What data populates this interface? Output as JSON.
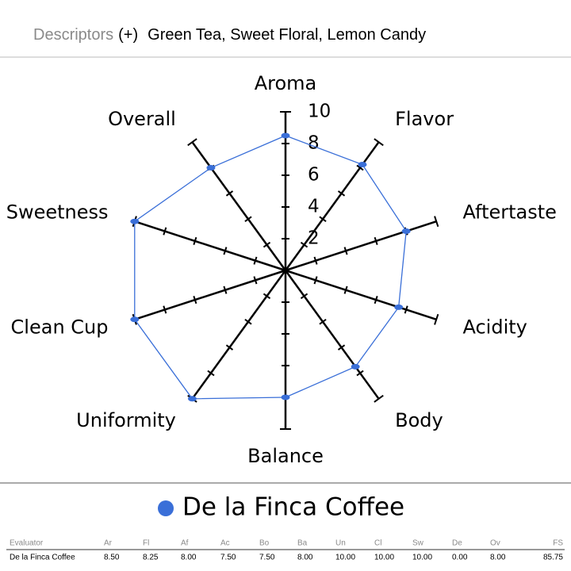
{
  "header": {
    "label": "Descriptors",
    "sign": "(+)",
    "text": "Green Tea, Sweet Floral, Lemon Candy"
  },
  "chart_data": {
    "type": "radar",
    "categories": [
      "Aroma",
      "Flavor",
      "Aftertaste",
      "Acidity",
      "Body",
      "Balance",
      "Uniformity",
      "Clean Cup",
      "Sweetness",
      "Overall"
    ],
    "series": [
      {
        "name": "De la Finca Coffee",
        "color": "#3a6fd8",
        "values": [
          8.5,
          8.25,
          8,
          7.5,
          7.5,
          8,
          10,
          10,
          10,
          8
        ]
      }
    ],
    "rlim": [
      0,
      10
    ],
    "rticks": [
      2,
      4,
      6,
      8,
      10
    ]
  },
  "table": {
    "columns": [
      "Evaluator",
      "Ar",
      "Fl",
      "Af",
      "Ac",
      "Bo",
      "Ba",
      "Un",
      "Cl",
      "Sw",
      "De",
      "Ov",
      "FS"
    ],
    "rows": [
      [
        "De la Finca Coffee",
        "8.50",
        "8.25",
        "8.00",
        "7.50",
        "7.50",
        "8.00",
        "10.00",
        "10.00",
        "10.00",
        "0.00",
        "8.00",
        "85.75"
      ]
    ]
  }
}
